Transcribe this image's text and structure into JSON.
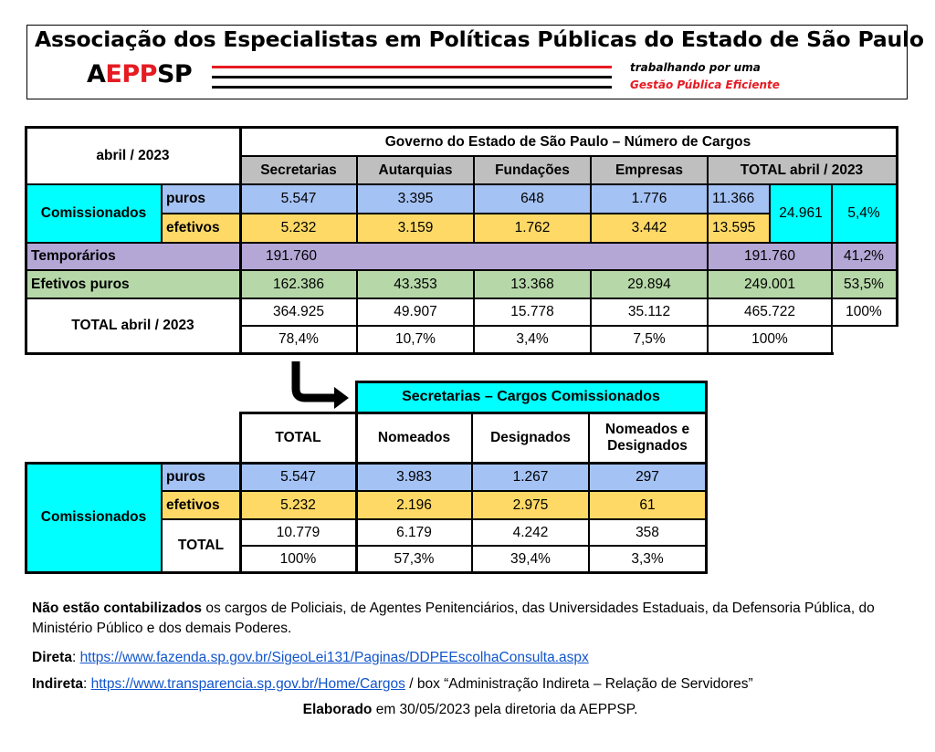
{
  "header": {
    "title": "Associação dos Especialistas em Políticas Públicas do Estado de São Paulo",
    "logo_a": "A",
    "logo_epp": "EPP",
    "logo_sp": "SP",
    "tagline_1": "trabalhando por uma",
    "tagline_2": "Gestão Pública Eficiente",
    "brand_red": "#e51b23"
  },
  "table1": {
    "corner": "abril / 2023",
    "title": "Governo do Estado de São Paulo – Número de Cargos",
    "columns": [
      "Secretarias",
      "Autarquias",
      "Fundações",
      "Empresas",
      "TOTAL abril / 2023"
    ],
    "comissionados": {
      "label": "Comissionados",
      "puros": {
        "label": "puros",
        "values": [
          "5.547",
          "3.395",
          "648",
          "1.776"
        ],
        "total": "11.366"
      },
      "efetivos": {
        "label": "efetivos",
        "values": [
          "5.232",
          "3.159",
          "1.762",
          "3.442"
        ],
        "total": "13.595"
      },
      "total": "24.961",
      "pct": "5,4%"
    },
    "temporarios": {
      "label": "Temporários",
      "secretarias": "191.760",
      "total": "191.760",
      "pct": "41,2%"
    },
    "efetivos_puros": {
      "label": "Efetivos puros",
      "values": [
        "162.386",
        "43.353",
        "13.368",
        "29.894"
      ],
      "total": "249.001",
      "pct": "53,5%"
    },
    "total_row": {
      "label": "TOTAL abril / 2023",
      "values": [
        "364.925",
        "49.907",
        "15.778",
        "35.112"
      ],
      "total": "465.722",
      "total_pct": "100%",
      "pcts": [
        "78,4%",
        "10,7%",
        "3,4%",
        "7,5%"
      ],
      "pct_total": "100%"
    }
  },
  "table2": {
    "title": "Secretarias – Cargos Comissionados",
    "columns": [
      "TOTAL",
      "Nomeados",
      "Designados",
      "Nomeados e Designados"
    ],
    "row_label": "Comissionados",
    "puros": {
      "label": "puros",
      "values": [
        "5.547",
        "3.983",
        "1.267",
        "297"
      ]
    },
    "efetivos": {
      "label": "efetivos",
      "values": [
        "5.232",
        "2.196",
        "2.975",
        "61"
      ]
    },
    "total": {
      "label": "TOTAL",
      "values": [
        "10.779",
        "6.179",
        "4.242",
        "358"
      ],
      "pcts": [
        "100%",
        "57,3%",
        "39,4%",
        "3,3%"
      ]
    }
  },
  "notes": {
    "line1_bold": "Não estão contabilizados",
    "line1_rest": " os cargos de Policiais, de Agentes Penitenciários, das Universidades Estaduais, da Defensoria Pública, do Ministério Público e dos demais Poderes.",
    "direta_label": "Direta",
    "direta_url": "https://www.fazenda.sp.gov.br/SigeoLei131/Paginas/DDPEEscolhaConsulta.aspx",
    "indireta_label": "Indireta",
    "indireta_url": "https://www.transparencia.sp.gov.br/Home/Cargos",
    "indireta_rest": " / box “Administração Indireta – Relação de Servidores”",
    "footer_bold": "Elaborado",
    "footer_rest": " em 30/05/2023 pela diretoria da AEPPSP."
  }
}
